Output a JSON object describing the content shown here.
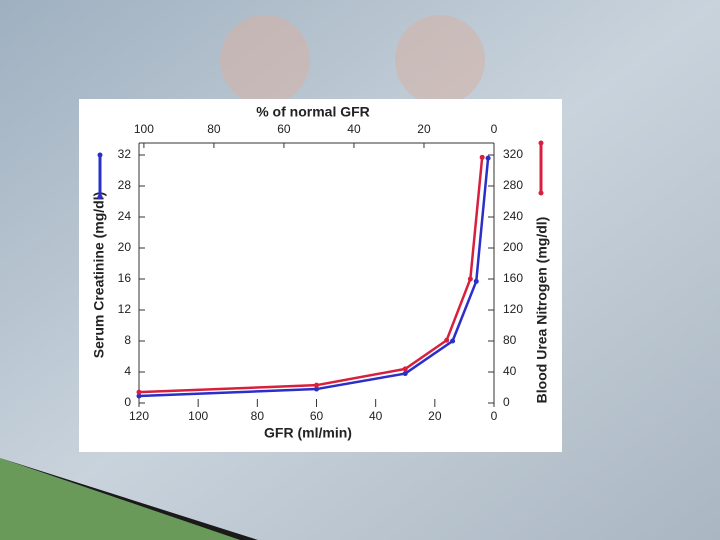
{
  "chart_data": {
    "type": "line",
    "title": "% of normal GFR",
    "x_label": "GFR (ml/min)",
    "y_label": "Serum Creatinine (mg/dl)",
    "y2_label": "Blood Urea Nitrogen (mg/dl)",
    "xlim": [
      120,
      0
    ],
    "xticks": [
      120,
      100,
      80,
      60,
      40,
      20,
      0
    ],
    "x2lim": [
      101.4,
      0
    ],
    "x2ticks": [
      100,
      80,
      60,
      40,
      20,
      0
    ],
    "ylim": [
      0,
      32
    ],
    "yticks": [
      0,
      4,
      8,
      12,
      16,
      20,
      24,
      28,
      32
    ],
    "y2lim": [
      0,
      320
    ],
    "y2ticks": [
      0,
      40,
      80,
      120,
      160,
      200,
      240,
      280,
      320
    ],
    "series": [
      {
        "name": "Serum Creatinine",
        "color": "#2a2fc8",
        "x": [
          120,
          60,
          30,
          14,
          6,
          2
        ],
        "values": [
          0.9,
          1.8,
          3.8,
          8,
          15.7,
          31.6
        ]
      },
      {
        "name": "Blood Urea Nitrogen",
        "color": "#d8203e",
        "axis": "y2",
        "x": [
          120,
          60,
          30,
          16,
          8,
          4
        ],
        "values": [
          14,
          23,
          44,
          81,
          160,
          317
        ]
      }
    ]
  }
}
